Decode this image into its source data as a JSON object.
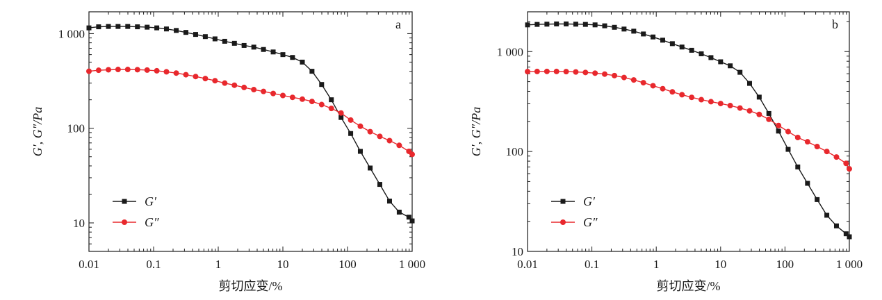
{
  "chart_data": [
    {
      "type": "line",
      "panel_label": "a",
      "xlabel": "剪切应变/%",
      "ylabel": "G′, G″/Pa",
      "x_scale": "log",
      "y_scale": "log",
      "xlim": [
        0.01,
        1000
      ],
      "ylim": [
        5,
        1700
      ],
      "x_ticks": [
        0.01,
        0.1,
        1,
        10,
        100,
        1000
      ],
      "x_tick_labels": [
        "0.01",
        "0.1",
        "1",
        "10",
        "100",
        "1 000"
      ],
      "y_ticks": [
        10,
        100,
        1000
      ],
      "y_tick_labels": [
        "10",
        "100",
        "1 000"
      ],
      "grid": false,
      "legend_position": "bottom-left",
      "series": [
        {
          "name": "G′",
          "color": "#1a1a1a",
          "marker": "square",
          "x": [
            0.01,
            0.0141,
            0.02,
            0.0282,
            0.0398,
            0.0562,
            0.0794,
            0.112,
            0.158,
            0.224,
            0.316,
            0.447,
            0.631,
            0.891,
            1.26,
            1.78,
            2.51,
            3.55,
            5.01,
            7.08,
            10,
            14.1,
            20,
            28.2,
            39.8,
            56.2,
            79.4,
            112,
            158,
            224,
            316,
            447,
            631,
            891,
            1000
          ],
          "y": [
            1150,
            1180,
            1190,
            1190,
            1190,
            1180,
            1170,
            1150,
            1120,
            1080,
            1030,
            980,
            930,
            880,
            830,
            790,
            750,
            720,
            680,
            640,
            600,
            560,
            500,
            400,
            290,
            200,
            130,
            88,
            57,
            38,
            25.5,
            17,
            13,
            11.5,
            10.5
          ]
        },
        {
          "name": "G″",
          "color": "#e8282d",
          "marker": "circle",
          "x": [
            0.01,
            0.0141,
            0.02,
            0.0282,
            0.0398,
            0.0562,
            0.0794,
            0.112,
            0.158,
            0.224,
            0.316,
            0.447,
            0.631,
            0.891,
            1.26,
            1.78,
            2.51,
            3.55,
            5.01,
            7.08,
            10,
            14.1,
            20,
            28.2,
            39.8,
            56.2,
            79.4,
            112,
            158,
            224,
            316,
            447,
            631,
            891,
            1000
          ],
          "y": [
            400,
            410,
            415,
            418,
            418,
            416,
            412,
            405,
            395,
            383,
            368,
            352,
            335,
            318,
            300,
            285,
            270,
            256,
            245,
            233,
            222,
            212,
            203,
            192,
            178,
            162,
            145,
            122,
            105,
            92,
            82,
            74,
            66,
            57,
            53
          ]
        }
      ]
    },
    {
      "type": "line",
      "panel_label": "b",
      "xlabel": "剪切应变/%",
      "ylabel": "G′, G″/Pa",
      "x_scale": "log",
      "y_scale": "log",
      "xlim": [
        0.01,
        1000
      ],
      "ylim": [
        10,
        2500
      ],
      "x_ticks": [
        0.01,
        0.1,
        1,
        10,
        100,
        1000
      ],
      "x_tick_labels": [
        "0.01",
        "0.1",
        "1",
        "10",
        "100",
        "1 000"
      ],
      "y_ticks": [
        10,
        100,
        1000
      ],
      "y_tick_labels": [
        "10",
        "100",
        "1 000"
      ],
      "grid": false,
      "legend_position": "bottom-left",
      "series": [
        {
          "name": "G′",
          "color": "#1a1a1a",
          "marker": "square",
          "x": [
            0.01,
            0.0141,
            0.02,
            0.0282,
            0.0398,
            0.0562,
            0.0794,
            0.112,
            0.158,
            0.224,
            0.316,
            0.447,
            0.631,
            0.891,
            1.26,
            1.78,
            2.51,
            3.55,
            5.01,
            7.08,
            10,
            14.1,
            20,
            28.2,
            39.8,
            56.2,
            79.4,
            112,
            158,
            224,
            316,
            447,
            631,
            891,
            1000
          ],
          "y": [
            1850,
            1870,
            1880,
            1890,
            1890,
            1880,
            1870,
            1850,
            1810,
            1750,
            1680,
            1600,
            1500,
            1400,
            1300,
            1200,
            1110,
            1030,
            950,
            870,
            790,
            720,
            620,
            480,
            350,
            240,
            160,
            105,
            70,
            48,
            33,
            23,
            18,
            15,
            14
          ]
        },
        {
          "name": "G″",
          "color": "#e8282d",
          "marker": "circle",
          "x": [
            0.01,
            0.0141,
            0.02,
            0.0282,
            0.0398,
            0.0562,
            0.0794,
            0.112,
            0.158,
            0.224,
            0.316,
            0.447,
            0.631,
            0.891,
            1.26,
            1.78,
            2.51,
            3.55,
            5.01,
            7.08,
            10,
            14.1,
            20,
            28.2,
            39.8,
            56.2,
            79.4,
            112,
            158,
            224,
            316,
            447,
            631,
            891,
            1000
          ],
          "y": [
            630,
            632,
            633,
            632,
            630,
            625,
            618,
            608,
            595,
            575,
            550,
            520,
            488,
            455,
            425,
            395,
            370,
            348,
            330,
            315,
            302,
            288,
            272,
            255,
            235,
            210,
            182,
            158,
            138,
            125,
            112,
            100,
            88,
            76,
            67
          ]
        }
      ]
    }
  ]
}
